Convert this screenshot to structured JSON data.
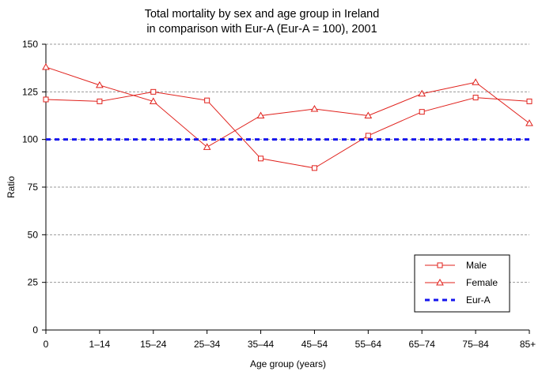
{
  "chart_data": {
    "type": "line",
    "title_lines": [
      "Total mortality by sex and age group in Ireland",
      "in comparison with Eur-A (Eur-A = 100), 2001"
    ],
    "xlabel": "Age group (years)",
    "ylabel": "Ratio",
    "categories": [
      "0",
      "1–14",
      "15–24",
      "25–34",
      "35–44",
      "45–54",
      "55–64",
      "65–74",
      "75–84",
      "85+"
    ],
    "ylim": [
      0,
      150
    ],
    "yticks": [
      0,
      25,
      50,
      75,
      100,
      125,
      150
    ],
    "grid": true,
    "legend_position": "bottom-right",
    "series": [
      {
        "name": "Male",
        "marker": "square",
        "color": "#e0201b",
        "values": [
          121,
          120,
          125,
          120.5,
          90,
          85,
          102,
          114.5,
          122,
          120
        ]
      },
      {
        "name": "Female",
        "marker": "triangle",
        "color": "#e0201b",
        "values": [
          138,
          128.5,
          120,
          96,
          112.5,
          116,
          112.5,
          124,
          130,
          108.5
        ]
      },
      {
        "name": "Eur-A",
        "marker": "none",
        "color": "#1515ee",
        "dashed": true,
        "values": [
          100,
          100,
          100,
          100,
          100,
          100,
          100,
          100,
          100,
          100
        ]
      }
    ]
  }
}
